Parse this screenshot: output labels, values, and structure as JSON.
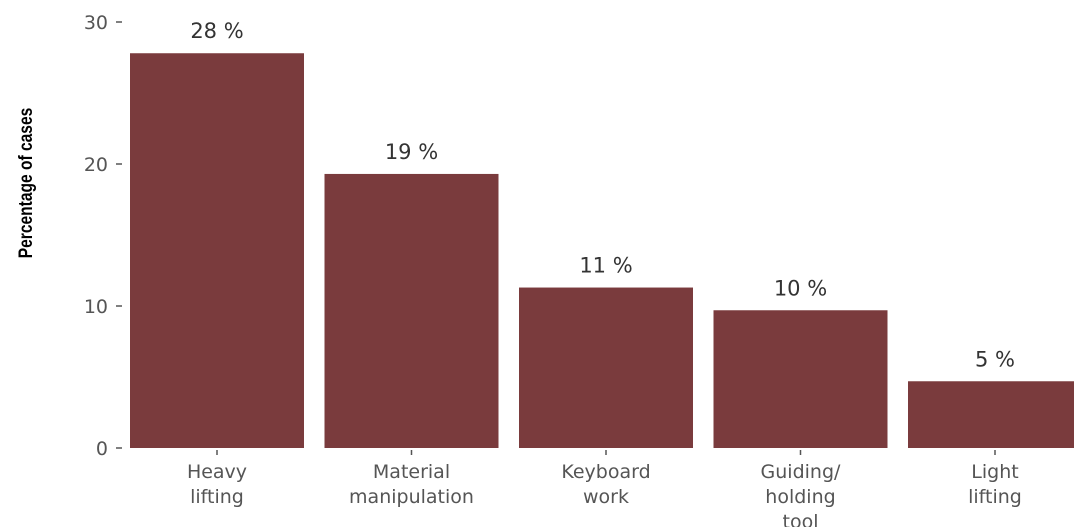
{
  "chart_data": {
    "type": "bar",
    "ylabel": "Percentage of cases",
    "xlabel": "",
    "categories": [
      [
        "Heavy",
        "lifting"
      ],
      [
        "Material",
        "manipulation"
      ],
      [
        "Keyboard",
        "work"
      ],
      [
        "Guiding/",
        "holding",
        "tool"
      ],
      [
        "Light",
        "lifting"
      ]
    ],
    "values": [
      27.8,
      19.3,
      11.3,
      9.7,
      4.7
    ],
    "data_labels": [
      "28 %",
      "19 %",
      "11 %",
      "10 %",
      "5 %"
    ],
    "ylim": [
      0,
      30
    ],
    "yticks": [
      0,
      10,
      20,
      30
    ],
    "ytick_labels": [
      "0",
      "10",
      "20",
      "30"
    ],
    "bar_color": "#7a3b3d",
    "grid": false,
    "legend": "none"
  }
}
